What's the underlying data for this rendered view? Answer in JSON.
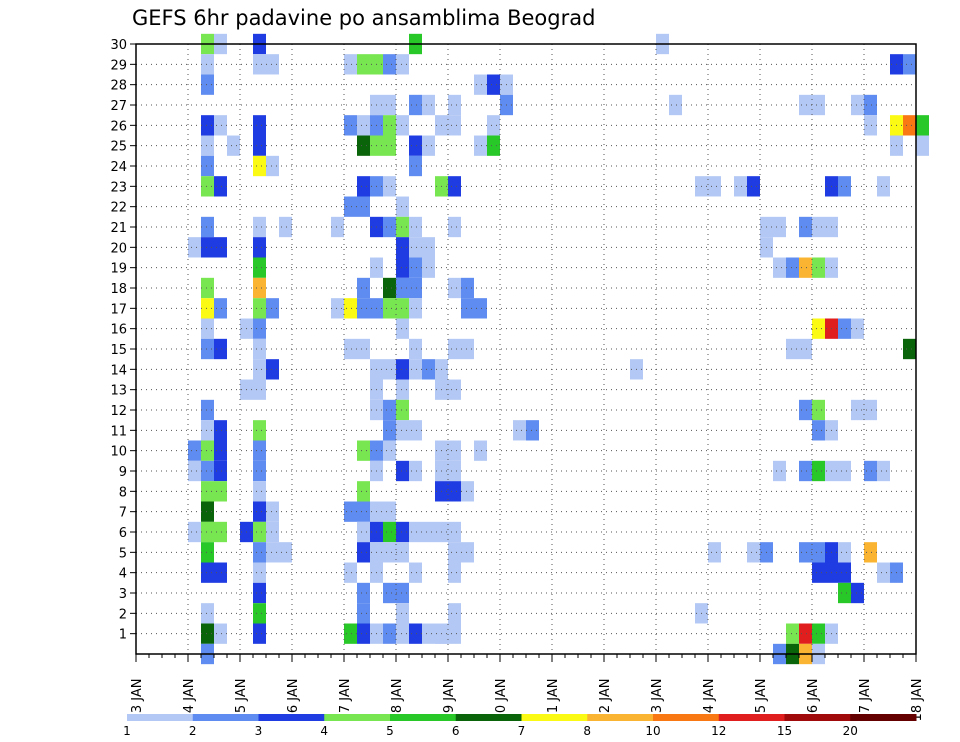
{
  "chart_data": {
    "type": "heatmap",
    "title": "GEFS 6hr padavine po ansamblima Beograd",
    "x_tick_labels": [
      "03 JAN",
      "04 JAN",
      "05 JAN",
      "06 JAN",
      "07 JAN",
      "08 JAN",
      "09 JAN",
      "10 JAN",
      "11 JAN",
      "12 JAN",
      "13 JAN",
      "14 JAN",
      "15 JAN",
      "16 JAN",
      "17 JAN",
      "18 JAN"
    ],
    "x_range_days": [
      0,
      15
    ],
    "x_step_days": 0.25,
    "y_tick_labels": [
      "1",
      "2",
      "3",
      "4",
      "5",
      "6",
      "7",
      "8",
      "9",
      "10",
      "11",
      "12",
      "13",
      "14",
      "15",
      "16",
      "17",
      "18",
      "19",
      "20",
      "21",
      "22",
      "23",
      "24",
      "25",
      "26",
      "27",
      "28",
      "29",
      "30"
    ],
    "y_range": [
      0,
      30
    ],
    "grid": true,
    "legend_position": "bottom",
    "color_levels": [
      1,
      2,
      3,
      4,
      5,
      6,
      7,
      8,
      10,
      12,
      15,
      20
    ],
    "color_scale": [
      "#b4c8f5",
      "#5f8cf0",
      "#1e3ce1",
      "#78e650",
      "#28c828",
      "#0a640a",
      "#fafa14",
      "#fab432",
      "#fa7814",
      "#e11e1e",
      "#a00a0a",
      "#640000"
    ],
    "cells": [
      [
        30,
        1.25,
        1,
        3
      ],
      [
        30,
        1.5,
        1,
        0
      ],
      [
        30,
        2.25,
        1,
        2
      ],
      [
        30,
        5.25,
        1,
        4
      ],
      [
        30,
        10,
        1,
        0
      ],
      [
        29,
        1.25,
        1,
        0
      ],
      [
        29,
        2.25,
        2,
        0
      ],
      [
        29,
        4,
        1,
        0
      ],
      [
        29,
        4.25,
        1,
        3
      ],
      [
        29,
        4.5,
        1,
        3
      ],
      [
        29,
        4.75,
        1,
        1
      ],
      [
        29,
        5,
        1,
        0
      ],
      [
        29,
        14.5,
        1,
        2
      ],
      [
        29,
        14.75,
        1,
        1
      ],
      [
        28,
        1.25,
        1,
        1
      ],
      [
        28,
        6.5,
        1,
        0
      ],
      [
        28,
        6.75,
        1,
        2
      ],
      [
        28,
        7,
        1,
        0
      ],
      [
        27,
        4.5,
        2,
        0
      ],
      [
        27,
        5.25,
        1,
        1
      ],
      [
        27,
        5.5,
        1,
        0
      ],
      [
        27,
        6,
        1,
        0
      ],
      [
        27,
        7,
        1,
        1
      ],
      [
        27,
        10.25,
        1,
        0
      ],
      [
        27,
        12.75,
        2,
        0
      ],
      [
        27,
        13.75,
        1,
        0
      ],
      [
        27,
        14,
        1,
        1
      ],
      [
        26,
        1.25,
        1,
        2
      ],
      [
        26,
        1.5,
        1,
        0
      ],
      [
        26,
        2.25,
        1,
        2
      ],
      [
        26,
        4,
        1,
        1
      ],
      [
        26,
        4.25,
        1,
        0
      ],
      [
        26,
        4.5,
        1,
        1
      ],
      [
        26,
        4.75,
        1,
        3
      ],
      [
        26,
        5,
        1,
        0
      ],
      [
        26,
        5.75,
        2,
        0
      ],
      [
        26,
        6.75,
        1,
        0
      ],
      [
        26,
        14,
        1,
        0
      ],
      [
        26,
        14.5,
        1,
        6
      ],
      [
        26,
        14.75,
        1,
        8
      ],
      [
        26,
        15,
        1,
        4
      ],
      [
        25,
        1.25,
        1,
        0
      ],
      [
        25,
        1.75,
        1,
        0
      ],
      [
        25,
        2.25,
        1,
        2
      ],
      [
        25,
        4.25,
        1,
        5
      ],
      [
        25,
        4.5,
        2,
        3
      ],
      [
        25,
        5.25,
        1,
        2
      ],
      [
        25,
        5.5,
        1,
        0
      ],
      [
        25,
        6.5,
        1,
        0
      ],
      [
        25,
        6.75,
        1,
        4
      ],
      [
        25,
        14.5,
        1,
        0
      ],
      [
        25,
        15,
        1,
        0
      ],
      [
        24,
        1.25,
        1,
        1
      ],
      [
        24,
        2.25,
        1,
        6
      ],
      [
        24,
        2.5,
        1,
        0
      ],
      [
        24,
        5.25,
        1,
        1
      ],
      [
        23,
        1.25,
        1,
        3
      ],
      [
        23,
        1.5,
        1,
        2
      ],
      [
        23,
        4.25,
        1,
        2
      ],
      [
        23,
        4.5,
        1,
        1
      ],
      [
        23,
        4.75,
        1,
        0
      ],
      [
        23,
        5.75,
        1,
        3
      ],
      [
        23,
        6,
        1,
        2
      ],
      [
        23,
        10.75,
        2,
        0
      ],
      [
        23,
        11.5,
        1,
        0
      ],
      [
        23,
        11.75,
        1,
        2
      ],
      [
        23,
        13.25,
        1,
        2
      ],
      [
        23,
        13.5,
        1,
        1
      ],
      [
        23,
        14.25,
        1,
        0
      ],
      [
        22,
        4,
        2,
        1
      ],
      [
        22,
        5,
        1,
        0
      ],
      [
        21,
        1.25,
        1,
        1
      ],
      [
        21,
        2.25,
        1,
        0
      ],
      [
        21,
        2.75,
        1,
        0
      ],
      [
        21,
        3.75,
        1,
        0
      ],
      [
        21,
        4.5,
        1,
        2
      ],
      [
        21,
        4.75,
        1,
        1
      ],
      [
        21,
        5,
        1,
        3
      ],
      [
        21,
        5.25,
        1,
        0
      ],
      [
        21,
        6,
        1,
        0
      ],
      [
        21,
        12,
        2,
        0
      ],
      [
        21,
        12.75,
        1,
        1
      ],
      [
        21,
        13,
        2,
        0
      ],
      [
        20,
        1,
        1,
        0
      ],
      [
        20,
        1.25,
        2,
        2
      ],
      [
        20,
        2.25,
        1,
        2
      ],
      [
        20,
        5,
        1,
        2
      ],
      [
        20,
        5.25,
        2,
        0
      ],
      [
        20,
        12,
        1,
        0
      ],
      [
        19,
        2.25,
        1,
        4
      ],
      [
        19,
        4.5,
        1,
        0
      ],
      [
        19,
        5,
        1,
        2
      ],
      [
        19,
        5.25,
        1,
        1
      ],
      [
        19,
        5.5,
        1,
        0
      ],
      [
        19,
        12.25,
        1,
        0
      ],
      [
        19,
        12.5,
        1,
        1
      ],
      [
        19,
        12.75,
        1,
        7
      ],
      [
        19,
        13,
        1,
        3
      ],
      [
        19,
        13.25,
        1,
        0
      ],
      [
        18,
        1.25,
        1,
        3
      ],
      [
        18,
        2.25,
        1,
        7
      ],
      [
        18,
        4.25,
        1,
        1
      ],
      [
        18,
        4.75,
        1,
        5
      ],
      [
        18,
        5,
        2,
        1
      ],
      [
        18,
        6,
        1,
        0
      ],
      [
        18,
        6.25,
        1,
        1
      ],
      [
        17,
        1.25,
        1,
        6
      ],
      [
        17,
        1.5,
        1,
        1
      ],
      [
        17,
        2.25,
        1,
        3
      ],
      [
        17,
        2.5,
        1,
        1
      ],
      [
        17,
        4,
        1,
        6
      ],
      [
        17,
        4.25,
        2,
        1
      ],
      [
        17,
        4.75,
        2,
        3
      ],
      [
        17,
        5.25,
        1,
        0
      ],
      [
        17,
        6.25,
        2,
        1
      ],
      [
        17,
        2.75,
        0,
        0
      ],
      [
        17,
        3.75,
        1,
        0
      ],
      [
        16,
        1.25,
        1,
        0
      ],
      [
        16,
        2,
        1,
        0
      ],
      [
        16,
        2.25,
        1,
        1
      ],
      [
        16,
        5,
        1,
        0
      ],
      [
        16,
        13,
        1,
        6
      ],
      [
        16,
        13.25,
        1,
        9
      ],
      [
        16,
        13.5,
        1,
        1
      ],
      [
        16,
        13.75,
        1,
        0
      ],
      [
        15,
        1.25,
        1,
        1
      ],
      [
        15,
        1.5,
        1,
        2
      ],
      [
        15,
        2.25,
        1,
        0
      ],
      [
        15,
        4,
        2,
        0
      ],
      [
        15,
        5.25,
        1,
        0
      ],
      [
        15,
        6,
        2,
        0
      ],
      [
        15,
        12.5,
        2,
        0
      ],
      [
        15,
        14.75,
        1,
        5
      ],
      [
        14,
        2.25,
        1,
        0
      ],
      [
        14,
        2.5,
        1,
        2
      ],
      [
        14,
        4.5,
        2,
        0
      ],
      [
        14,
        5,
        1,
        2
      ],
      [
        14,
        5.25,
        1,
        0
      ],
      [
        14,
        5.5,
        1,
        1
      ],
      [
        14,
        5.75,
        1,
        0
      ],
      [
        14,
        9.5,
        1,
        0
      ],
      [
        13,
        2,
        2,
        0
      ],
      [
        13,
        4.5,
        1,
        0
      ],
      [
        13,
        5,
        1,
        0
      ],
      [
        13,
        5.75,
        2,
        0
      ],
      [
        12,
        1.25,
        1,
        1
      ],
      [
        12,
        4.5,
        1,
        0
      ],
      [
        12,
        4.75,
        1,
        1
      ],
      [
        12,
        5,
        1,
        3
      ],
      [
        12,
        12.75,
        1,
        1
      ],
      [
        12,
        13,
        1,
        3
      ],
      [
        12,
        13.75,
        2,
        0
      ],
      [
        11,
        1.25,
        1,
        0
      ],
      [
        11,
        1.5,
        1,
        2
      ],
      [
        11,
        2.25,
        1,
        3
      ],
      [
        11,
        4.75,
        1,
        1
      ],
      [
        11,
        5,
        1,
        0
      ],
      [
        11,
        5.25,
        1,
        0
      ],
      [
        11,
        7.25,
        1,
        0
      ],
      [
        11,
        7.5,
        1,
        1
      ],
      [
        11,
        13,
        1,
        1
      ],
      [
        11,
        13.25,
        1,
        0
      ],
      [
        10,
        1,
        1,
        1
      ],
      [
        10,
        1.25,
        1,
        3
      ],
      [
        10,
        1.5,
        1,
        2
      ],
      [
        10,
        2.25,
        1,
        1
      ],
      [
        10,
        4.25,
        1,
        3
      ],
      [
        10,
        4.5,
        1,
        1
      ],
      [
        10,
        4.75,
        1,
        0
      ],
      [
        10,
        5.75,
        2,
        0
      ],
      [
        10,
        6.5,
        1,
        0
      ],
      [
        9,
        1,
        1,
        0
      ],
      [
        9,
        1.25,
        1,
        1
      ],
      [
        9,
        1.5,
        1,
        2
      ],
      [
        9,
        2.25,
        1,
        1
      ],
      [
        9,
        4.5,
        1,
        0
      ],
      [
        9,
        5,
        1,
        2
      ],
      [
        9,
        5.25,
        1,
        0
      ],
      [
        9,
        5.75,
        2,
        0
      ],
      [
        9,
        12.25,
        1,
        0
      ],
      [
        9,
        12.75,
        1,
        1
      ],
      [
        9,
        13,
        1,
        4
      ],
      [
        9,
        13.25,
        2,
        0
      ],
      [
        9,
        14,
        1,
        1
      ],
      [
        9,
        14.25,
        1,
        0
      ],
      [
        8,
        1.25,
        2,
        3
      ],
      [
        8,
        2.25,
        1,
        0
      ],
      [
        8,
        4.25,
        1,
        3
      ],
      [
        8,
        5.75,
        2,
        2
      ],
      [
        8,
        6.25,
        1,
        0
      ],
      [
        7,
        1.25,
        1,
        5
      ],
      [
        7,
        2.25,
        1,
        2
      ],
      [
        7,
        2.5,
        1,
        0
      ],
      [
        7,
        4,
        2,
        1
      ],
      [
        7,
        4.5,
        2,
        0
      ],
      [
        6,
        1,
        1,
        0
      ],
      [
        6,
        1.25,
        2,
        3
      ],
      [
        6,
        2,
        1,
        2
      ],
      [
        6,
        2.25,
        1,
        3
      ],
      [
        6,
        2.5,
        1,
        0
      ],
      [
        6,
        4.25,
        1,
        0
      ],
      [
        6,
        4.5,
        1,
        2
      ],
      [
        6,
        4.75,
        1,
        4
      ],
      [
        6,
        5,
        1,
        2
      ],
      [
        6,
        5.25,
        4,
        0
      ],
      [
        5,
        1.25,
        1,
        4
      ],
      [
        5,
        2.25,
        1,
        1
      ],
      [
        5,
        2.5,
        2,
        0
      ],
      [
        5,
        4.25,
        1,
        2
      ],
      [
        5,
        4.5,
        2,
        0
      ],
      [
        5,
        5,
        1,
        0
      ],
      [
        5,
        6,
        2,
        0
      ],
      [
        5,
        11,
        1,
        0
      ],
      [
        5,
        11.75,
        1,
        0
      ],
      [
        5,
        12,
        1,
        1
      ],
      [
        5,
        12.75,
        1,
        1
      ],
      [
        5,
        13,
        1,
        1
      ],
      [
        5,
        13.25,
        1,
        2
      ],
      [
        5,
        13.5,
        1,
        0
      ],
      [
        5,
        14,
        1,
        7
      ],
      [
        4,
        1.25,
        2,
        2
      ],
      [
        4,
        2.25,
        1,
        0
      ],
      [
        4,
        4,
        1,
        0
      ],
      [
        4,
        4.5,
        1,
        0
      ],
      [
        4,
        5.25,
        1,
        0
      ],
      [
        4,
        6,
        1,
        0
      ],
      [
        4,
        13,
        3,
        2
      ],
      [
        4,
        14.25,
        1,
        0
      ],
      [
        4,
        14.5,
        1,
        1
      ],
      [
        3,
        2.25,
        1,
        2
      ],
      [
        3,
        4.25,
        1,
        1
      ],
      [
        3,
        4.75,
        1,
        1
      ],
      [
        3,
        5,
        1,
        1
      ],
      [
        3,
        13.5,
        1,
        4
      ],
      [
        3,
        13.75,
        1,
        2
      ],
      [
        2,
        1.25,
        1,
        0
      ],
      [
        2,
        2.25,
        1,
        4
      ],
      [
        2,
        4.25,
        1,
        1
      ],
      [
        2,
        5,
        1,
        0
      ],
      [
        2,
        6,
        1,
        0
      ],
      [
        2,
        10.75,
        1,
        0
      ],
      [
        1,
        1.25,
        1,
        5
      ],
      [
        1,
        1.5,
        1,
        0
      ],
      [
        1,
        2.25,
        1,
        2
      ],
      [
        1,
        4,
        1,
        4
      ],
      [
        1,
        4.25,
        1,
        2
      ],
      [
        1,
        4.5,
        1,
        0
      ],
      [
        1,
        4.75,
        1,
        1
      ],
      [
        1,
        5,
        1,
        0
      ],
      [
        1,
        5.25,
        1,
        2
      ],
      [
        1,
        5.5,
        2,
        0
      ],
      [
        1,
        5.75,
        1,
        0
      ],
      [
        1,
        6,
        1,
        0
      ],
      [
        1,
        12.5,
        1,
        3
      ],
      [
        1,
        12.75,
        1,
        9
      ],
      [
        1,
        13,
        1,
        4
      ],
      [
        1,
        13.25,
        1,
        0
      ],
      [
        0,
        1.25,
        1,
        1
      ],
      [
        0,
        12.25,
        1,
        1
      ],
      [
        0,
        12.5,
        1,
        5
      ],
      [
        0,
        12.75,
        1,
        7
      ],
      [
        0,
        13,
        1,
        0
      ]
    ]
  }
}
